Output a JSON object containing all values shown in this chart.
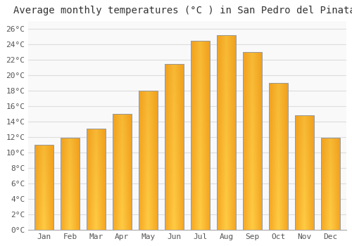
{
  "title": "Average monthly temperatures (°C ) in San Pedro del Pinatar",
  "months": [
    "Jan",
    "Feb",
    "Mar",
    "Apr",
    "May",
    "Jun",
    "Jul",
    "Aug",
    "Sep",
    "Oct",
    "Nov",
    "Dec"
  ],
  "values": [
    11.0,
    11.9,
    13.1,
    15.0,
    18.0,
    21.5,
    24.5,
    25.2,
    23.0,
    19.0,
    14.8,
    11.9
  ],
  "bar_color_center": "#FFCC44",
  "bar_color_edge": "#F5A623",
  "bar_border_color": "#999999",
  "background_color": "#ffffff",
  "plot_bg_color": "#f9f9f9",
  "grid_color": "#dddddd",
  "ylim": [
    0,
    27
  ],
  "ytick_step": 2,
  "title_fontsize": 10,
  "tick_fontsize": 8,
  "font_family": "monospace"
}
